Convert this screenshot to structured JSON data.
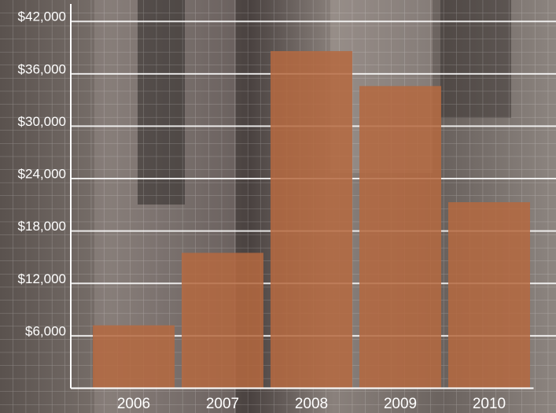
{
  "chart_data": {
    "type": "bar",
    "categories": [
      "2006",
      "2007",
      "2008",
      "2009",
      "2010"
    ],
    "values": [
      7200,
      15500,
      38600,
      34600,
      21300
    ],
    "color": "#b5683f",
    "ylim": [
      0,
      44000
    ],
    "yticks": [
      {
        "value": 6000,
        "label": "$6,000"
      },
      {
        "value": 12000,
        "label": "$12,000"
      },
      {
        "value": 18000,
        "label": "$18,000"
      },
      {
        "value": 24000,
        "label": "$24,000"
      },
      {
        "value": 30000,
        "label": "$30,000"
      },
      {
        "value": 36000,
        "label": "$36,000"
      },
      {
        "value": 42000,
        "label": "$42,000"
      }
    ],
    "grid": true
  }
}
